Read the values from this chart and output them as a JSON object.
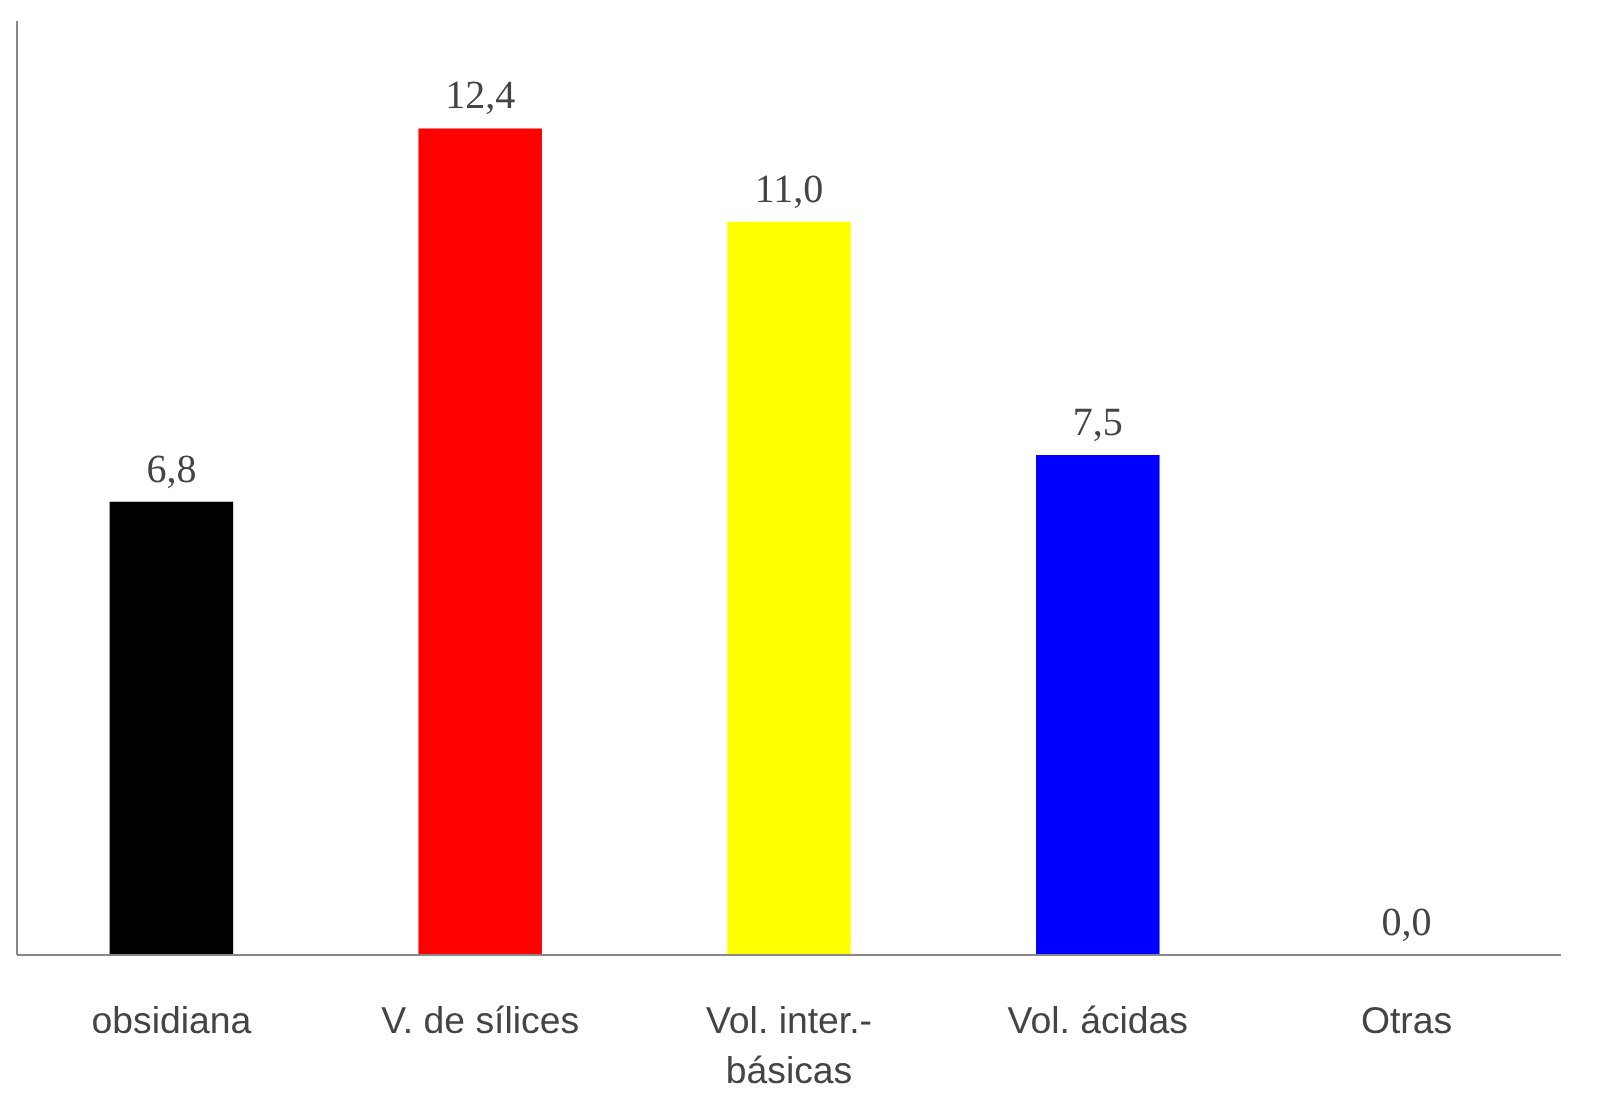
{
  "chart_data": {
    "type": "bar",
    "categories": [
      "obsidiana",
      "V. de sílices",
      "Vol. inter.-\nbásicas",
      "Vol. ácidas",
      "Otras"
    ],
    "values": [
      6.8,
      12.4,
      11.0,
      7.5,
      0.0
    ],
    "colors": [
      "#000000",
      "#ff0000",
      "#ffff00",
      "#0000ff",
      "#ffffff"
    ],
    "value_labels": [
      "6,8",
      "12,4",
      "11,0",
      "7,5",
      "0,0"
    ],
    "grid": false
  }
}
